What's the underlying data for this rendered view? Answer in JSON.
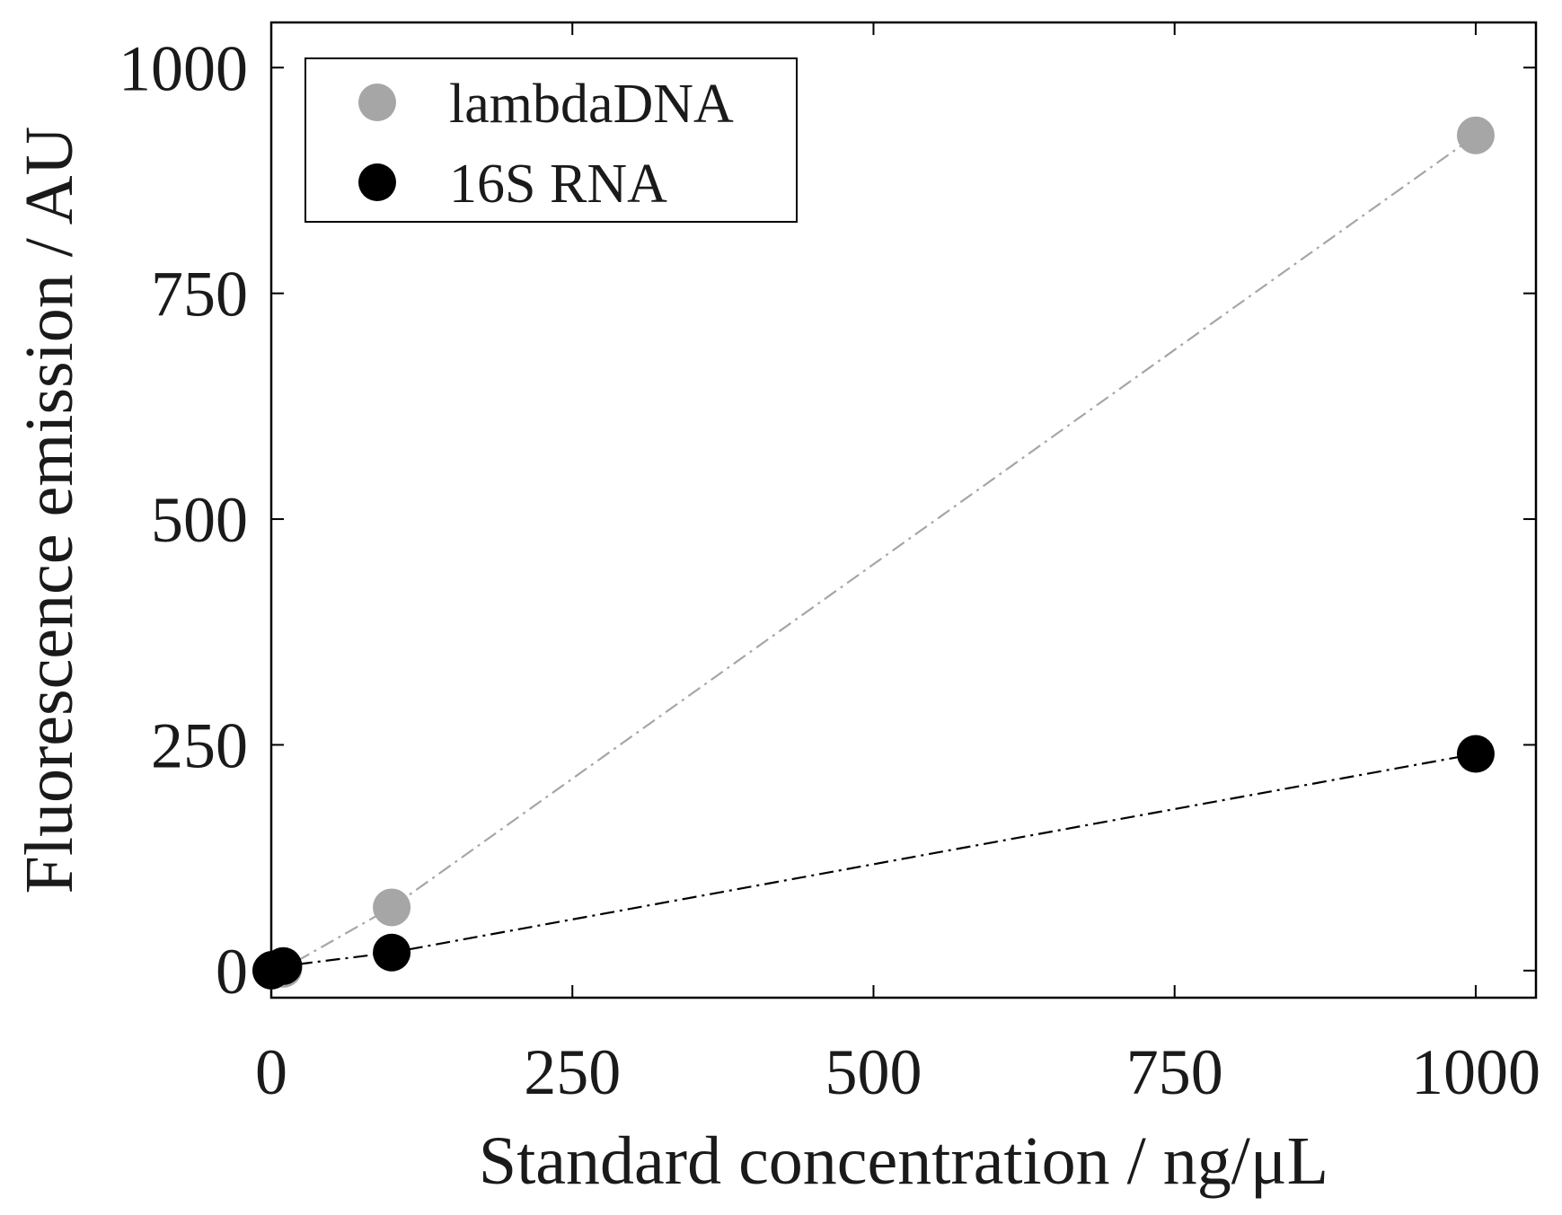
{
  "chart_data": {
    "type": "scatter",
    "title": "",
    "xlabel": "Standard concentration / ng/μL",
    "ylabel": "Fluorescence emission / AU",
    "xlim": [
      0,
      1050
    ],
    "ylim": [
      -30,
      1050
    ],
    "xticks": [
      0,
      250,
      500,
      750,
      1000
    ],
    "yticks": [
      0,
      250,
      500,
      750,
      1000
    ],
    "xtick_labels": [
      "0",
      "250",
      "500",
      "750",
      "1000"
    ],
    "ytick_labels": [
      "0",
      "250",
      "500",
      "750",
      "1000"
    ],
    "grid": false,
    "legend_position": "top-left",
    "series": [
      {
        "name": "lambdaDNA",
        "color": "#a6a6a6",
        "line_style": "dash-dot",
        "x": [
          0,
          1,
          10,
          100,
          1000
        ],
        "y": [
          0,
          1,
          2,
          70,
          925
        ]
      },
      {
        "name": "16S RNA",
        "color": "#000000",
        "line_style": "dash-dot",
        "x": [
          0,
          1,
          10,
          100,
          1000
        ],
        "y": [
          0,
          1,
          5,
          20,
          240
        ]
      }
    ]
  }
}
